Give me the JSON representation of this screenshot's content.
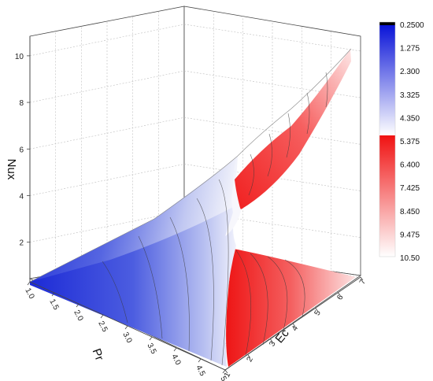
{
  "chart_data": {
    "type": "surface3d",
    "title": "",
    "z_axis": {
      "label": "Nux",
      "ticks": [
        "2",
        "4",
        "6",
        "8",
        "10"
      ]
    },
    "x_axis": {
      "label": "Pr",
      "ticks": [
        "1.0",
        "1.5",
        "2.0",
        "2.5",
        "3.0",
        "3.5",
        "4.0",
        "4.5",
        "5.0"
      ]
    },
    "y_axis": {
      "label": "Ec",
      "ticks": [
        "1",
        "2",
        "3",
        "4",
        "5",
        "6",
        "7"
      ]
    },
    "grid": true,
    "legend_position": "right",
    "colorbar": {
      "labels": [
        "0.2500",
        "1.275",
        "2.300",
        "3.325",
        "4.350",
        "5.375",
        "6.400",
        "7.425",
        "8.450",
        "9.475",
        "10.50"
      ],
      "top_color": "#000000",
      "low_color": "#1e2bd6",
      "mid_color": "#ffffff",
      "high_color": "#f01e1e"
    }
  }
}
